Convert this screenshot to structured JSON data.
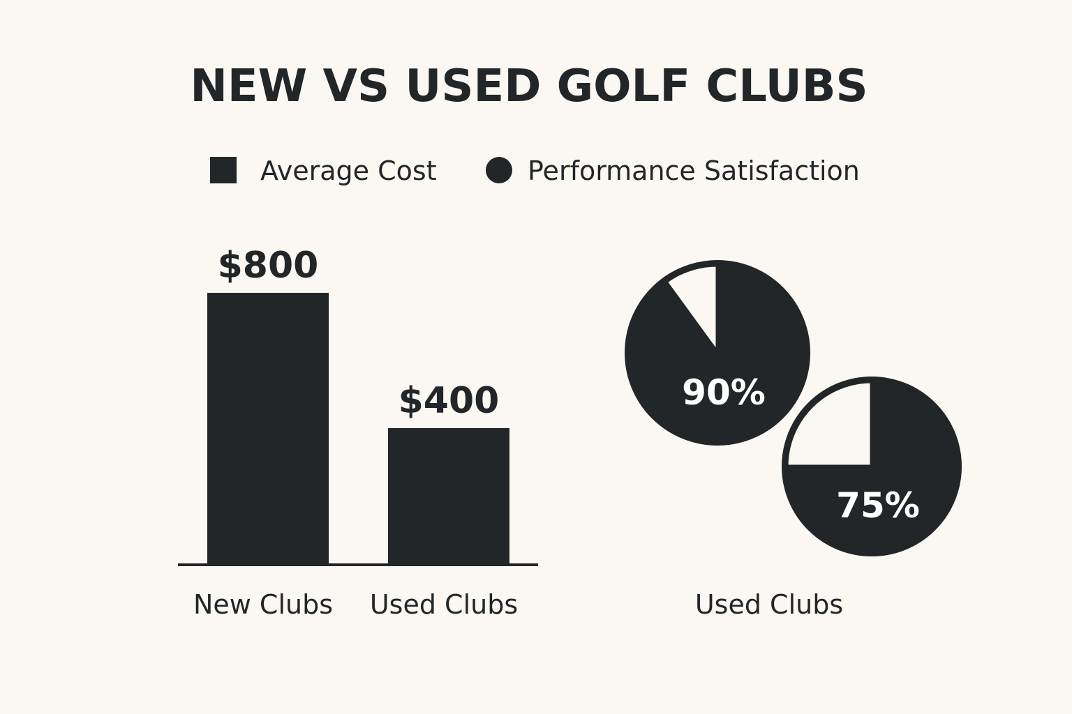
{
  "colors": {
    "background": "#fbf8f3",
    "ink": "#222629",
    "pie_remainder": "#fbf8f3",
    "pie_label": "#ffffff"
  },
  "chart_data": [
    {
      "type": "bar",
      "title": "NEW VS USED GOLF CLUBS",
      "legend": [
        {
          "label": "Average Cost",
          "marker": "square"
        },
        {
          "label": "Performance Satisfaction",
          "marker": "circle"
        }
      ],
      "series_name": "Average Cost",
      "categories": [
        "New Clubs",
        "Used Clubs"
      ],
      "values": [
        800,
        400
      ],
      "value_labels": [
        "$800",
        "$400"
      ],
      "ylim": [
        0,
        800
      ],
      "grid": false,
      "axis": "baseline only"
    },
    {
      "type": "pie",
      "series_name": "Performance Satisfaction",
      "slices": [
        {
          "value": 90,
          "label": "90%",
          "remainder": 10
        },
        {
          "value": 75,
          "label": "75%",
          "remainder": 25
        }
      ],
      "xlabel": "Used Clubs"
    }
  ]
}
